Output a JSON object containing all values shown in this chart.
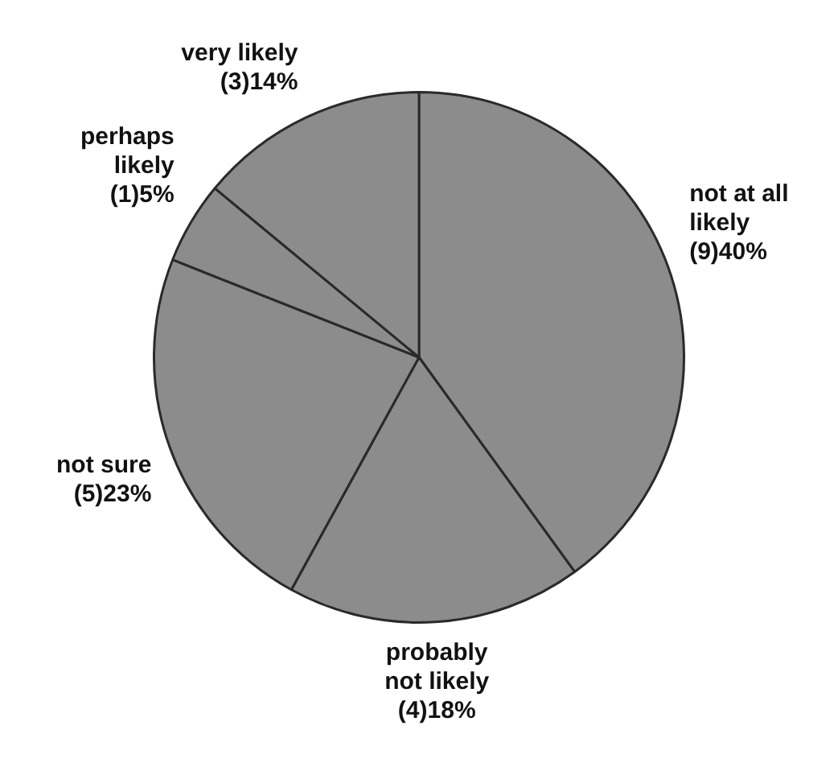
{
  "chart_data": {
    "type": "pie",
    "categories": [
      "not at all likely",
      "probably not likely",
      "not sure",
      "perhaps likely",
      "very likely"
    ],
    "values": [
      40,
      18,
      23,
      5,
      14
    ],
    "colors": [
      "#8c8c8c",
      "#8c8c8c",
      "#8c8c8c",
      "#8c8c8c",
      "#8c8c8c"
    ],
    "value_labels": [
      "(9)40%",
      "(4)18%",
      "(5)23%",
      "(1)5%",
      "(3)14%"
    ],
    "legend": false
  }
}
